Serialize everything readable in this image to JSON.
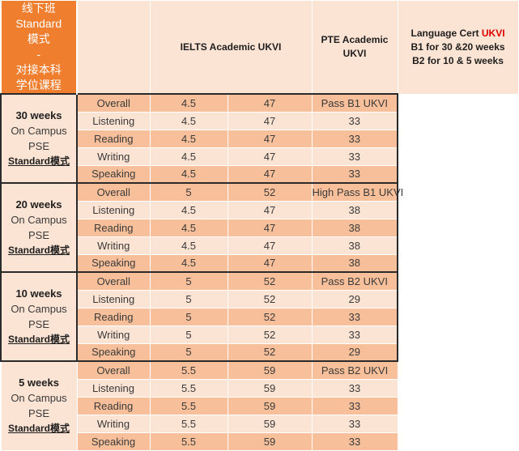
{
  "side_label": [
    "线下班",
    "Standard",
    "模式",
    "-",
    "对接本科",
    "学位课程"
  ],
  "header": {
    "ielts": "IELTS Academic UKVI",
    "pte_line1": "PTE Academic",
    "pte_line2": "UKVI",
    "lc_prefix": "Language Cert ",
    "lc_red": "UKVI",
    "lc_line2": "B1  for 30 &20 weeks",
    "lc_line3": "B2 for 10 & 5 weeks"
  },
  "colors": {
    "side_orange": "#ef7f2f",
    "light_peach": "#fce4d4",
    "mid_peach": "#f8c09a",
    "accent_red": "#e00000"
  },
  "groups": [
    {
      "weeks": "30 weeks",
      "campus": "On Campus",
      "pse": "PSE",
      "mode": "Standard模式",
      "rows": [
        {
          "skill": "Overall",
          "ielts": "4.5",
          "pte": "47",
          "lc": "Pass B1 UKVI"
        },
        {
          "skill": "Listening",
          "ielts": "4.5",
          "pte": "47",
          "lc": "33"
        },
        {
          "skill": "Reading",
          "ielts": "4.5",
          "pte": "47",
          "lc": "33"
        },
        {
          "skill": "Writing",
          "ielts": "4.5",
          "pte": "47",
          "lc": "33"
        },
        {
          "skill": "Speaking",
          "ielts": "4.5",
          "pte": "47",
          "lc": "33"
        }
      ]
    },
    {
      "weeks": "20 weeks",
      "campus": "On Campus",
      "pse": "PSE",
      "mode": "Standard模式",
      "rows": [
        {
          "skill": "Overall",
          "ielts": "5",
          "pte": "52",
          "lc": "High Pass B1 UKVI"
        },
        {
          "skill": "Listening",
          "ielts": "4.5",
          "pte": "47",
          "lc": "38"
        },
        {
          "skill": "Reading",
          "ielts": "4.5",
          "pte": "47",
          "lc": "38"
        },
        {
          "skill": "Writing",
          "ielts": "4.5",
          "pte": "47",
          "lc": "38"
        },
        {
          "skill": "Speaking",
          "ielts": "4.5",
          "pte": "47",
          "lc": "38"
        }
      ]
    },
    {
      "weeks": "10 weeks",
      "campus": "On Campus",
      "pse": "PSE",
      "mode": "Standard模式",
      "rows": [
        {
          "skill": "Overall",
          "ielts": "5",
          "pte": "52",
          "lc": "Pass B2 UKVI"
        },
        {
          "skill": "Listening",
          "ielts": "5",
          "pte": "52",
          "lc": "29"
        },
        {
          "skill": "Reading",
          "ielts": "5",
          "pte": "52",
          "lc": "33"
        },
        {
          "skill": "Writing",
          "ielts": "5",
          "pte": "52",
          "lc": "33"
        },
        {
          "skill": "Speaking",
          "ielts": "5",
          "pte": "52",
          "lc": "29"
        }
      ]
    },
    {
      "weeks": "5 weeks",
      "campus": "On Campus",
      "pse": "PSE",
      "mode": "Standard模式",
      "rows": [
        {
          "skill": "Overall",
          "ielts": "5.5",
          "pte": "59",
          "lc": "Pass B2 UKVI"
        },
        {
          "skill": "Listening",
          "ielts": "5.5",
          "pte": "59",
          "lc": "33"
        },
        {
          "skill": "Reading",
          "ielts": "5.5",
          "pte": "59",
          "lc": "33"
        },
        {
          "skill": "Writing",
          "ielts": "5.5",
          "pte": "59",
          "lc": "33"
        },
        {
          "skill": "Speaking",
          "ielts": "5.5",
          "pte": "59",
          "lc": "33"
        }
      ]
    }
  ]
}
